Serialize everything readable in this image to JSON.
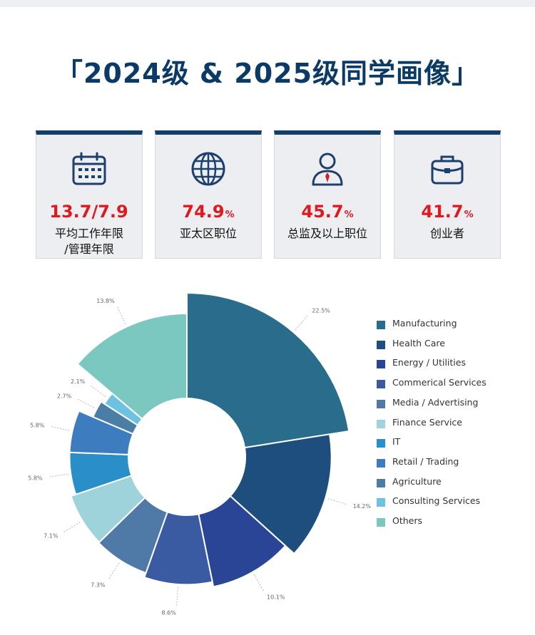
{
  "header": {
    "title_open": "「",
    "title": "2024级 & 2025级同学画像",
    "title_close": "」"
  },
  "stats": [
    {
      "icon": "calendar-icon",
      "value": "13.7/7.9",
      "unit": "",
      "label_lines": [
        "平均工作年限",
        "/管理年限"
      ]
    },
    {
      "icon": "globe-icon",
      "value": "74.9",
      "unit": "%",
      "label_lines": [
        "亚太区职位"
      ]
    },
    {
      "icon": "executive-icon",
      "value": "45.7",
      "unit": "%",
      "label_lines": [
        "总监及以上职位"
      ]
    },
    {
      "icon": "briefcase-icon",
      "value": "41.7",
      "unit": "%",
      "label_lines": [
        "创业者"
      ]
    }
  ],
  "colors": {
    "title": "#0b3a66",
    "card_top": "#123e6e",
    "value": "#e0191f"
  },
  "chart_data": {
    "type": "pie",
    "variant": "nightingale-donut",
    "labels": [
      "Manufacturing",
      "Health Care",
      "Energy / Utilities",
      "Commerical Services",
      "Media / Advertising",
      "Finance Service",
      "IT",
      "Retail / Trading",
      "Agriculture",
      "Consulting Services",
      "Others"
    ],
    "values": [
      22.5,
      14.2,
      10.1,
      8.6,
      7.3,
      7.1,
      5.8,
      5.8,
      2.7,
      2.1,
      13.8
    ],
    "value_labels": [
      "22.5%",
      "14.2%",
      "10.1%",
      "8.6%",
      "7.3%",
      "7.1%",
      "5.8%",
      "5.8%",
      "2.7%",
      "2.1%",
      "13.8%"
    ],
    "colors": [
      "#2a6c8c",
      "#1d4e7e",
      "#2a4596",
      "#3a5aa2",
      "#4f7aa8",
      "#9fd3dc",
      "#2a8fc8",
      "#3d7cbf",
      "#4a7ea6",
      "#6cc2e0",
      "#7ac8c0"
    ],
    "legend_position": "right"
  }
}
